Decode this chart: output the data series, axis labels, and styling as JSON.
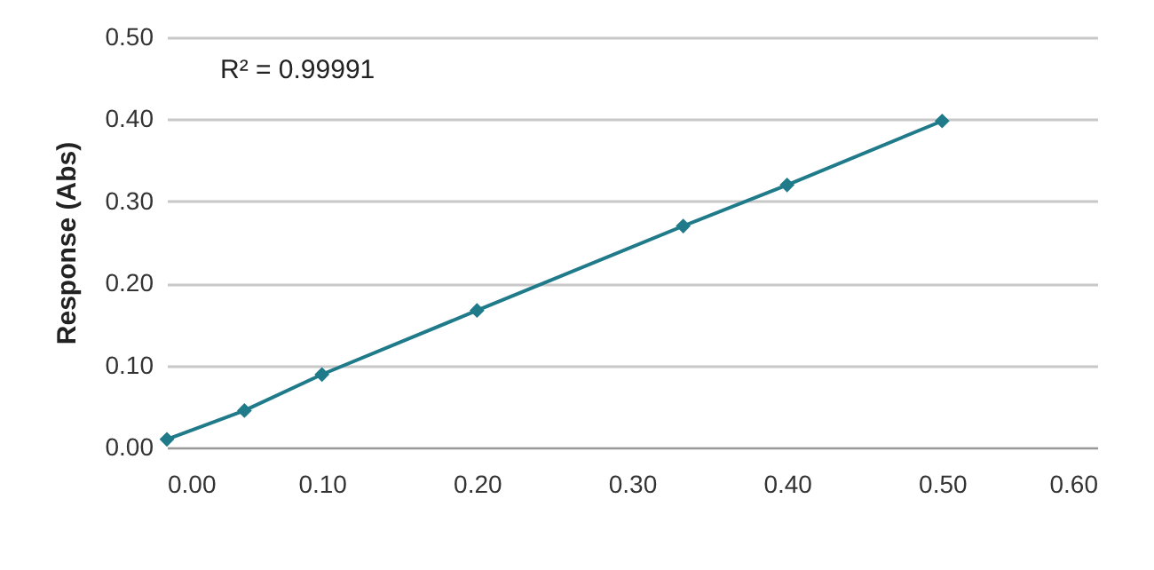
{
  "chart_data": {
    "type": "line",
    "ylabel": "Response (Abs)",
    "x": [
      0,
      0.05,
      0.1,
      0.2,
      0.333,
      0.4,
      0.5
    ],
    "series": [
      {
        "color": "#1f7a8a",
        "values": [
          0.01,
          0.045,
          0.089,
          0.167,
          0.27,
          0.32,
          0.398
        ]
      }
    ],
    "xlim": [
      0,
      0.6
    ],
    "xticks": [
      {
        "value": 0,
        "label": "0.00"
      },
      {
        "value": 0.1,
        "label": "0.10"
      },
      {
        "value": 0.2,
        "label": "0.20"
      },
      {
        "value": 0.3,
        "label": "0.30"
      },
      {
        "value": 0.4,
        "label": "0.40"
      },
      {
        "value": 0.5,
        "label": "0.50"
      },
      {
        "value": 0.6,
        "label": "0.60"
      }
    ],
    "ylim": [
      0,
      0.5
    ],
    "yticks": [
      {
        "value": 0,
        "label": "0.00"
      },
      {
        "value": 0.1,
        "label": "0.10"
      },
      {
        "value": 0.2,
        "label": "0.20"
      },
      {
        "value": 0.3,
        "label": "0.30"
      },
      {
        "value": 0.4,
        "label": "0.40"
      },
      {
        "value": 0.5,
        "label": "0.50"
      }
    ],
    "grid": "y",
    "marker": "diamond",
    "line_style": "solid",
    "annotations": [
      "R² = 0.99991"
    ]
  }
}
